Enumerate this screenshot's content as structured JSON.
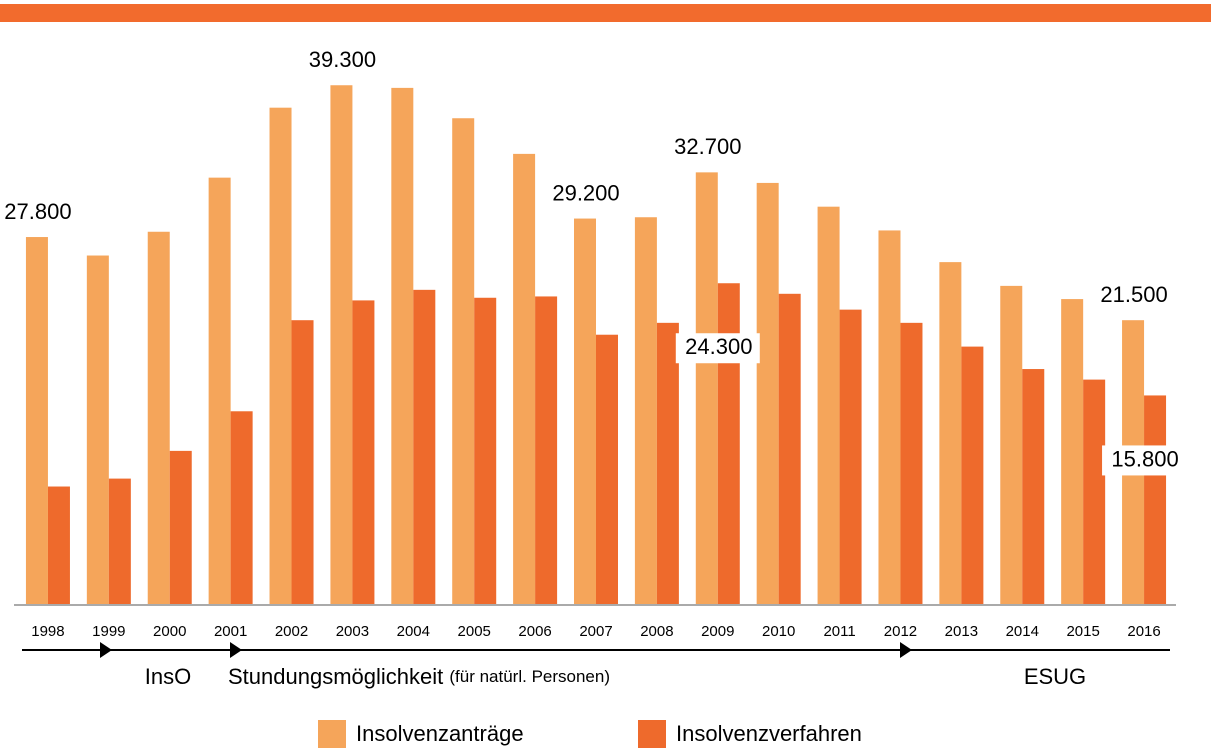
{
  "chart_data": {
    "type": "bar",
    "categories": [
      "1998",
      "1999",
      "2000",
      "2001",
      "2002",
      "2003",
      "2004",
      "2005",
      "2006",
      "2007",
      "2008",
      "2009",
      "2010",
      "2011",
      "2012",
      "2013",
      "2014",
      "2015",
      "2016"
    ],
    "series": [
      {
        "name": "Insolvenzanträge",
        "color": "#f5a55a",
        "values": [
          27800,
          26400,
          28200,
          32300,
          37600,
          39300,
          39100,
          36800,
          34100,
          29200,
          29300,
          32700,
          31900,
          30100,
          28300,
          25900,
          24100,
          23100,
          21500
        ],
        "value_labels": [
          "27.800",
          null,
          null,
          null,
          null,
          "39.300",
          null,
          null,
          null,
          "29.200",
          null,
          "32.700",
          null,
          null,
          null,
          null,
          null,
          null,
          "21.500"
        ]
      },
      {
        "name": "Insolvenzverfahren",
        "color": "#ee6a2c",
        "values": [
          8900,
          9500,
          11600,
          14600,
          21500,
          23000,
          23800,
          23200,
          23300,
          20400,
          21300,
          24300,
          23500,
          22300,
          21300,
          19500,
          17800,
          17000,
          15800
        ],
        "value_labels": [
          null,
          null,
          null,
          null,
          null,
          null,
          null,
          null,
          null,
          null,
          null,
          "24.300",
          null,
          null,
          null,
          null,
          null,
          null,
          "15.800"
        ]
      }
    ],
    "ylim": [
      0,
      40000
    ],
    "annotations": [
      "InsO",
      "Stundungsmöglichkeit",
      "(für natürl. Personen)",
      "ESUG"
    ]
  }
}
